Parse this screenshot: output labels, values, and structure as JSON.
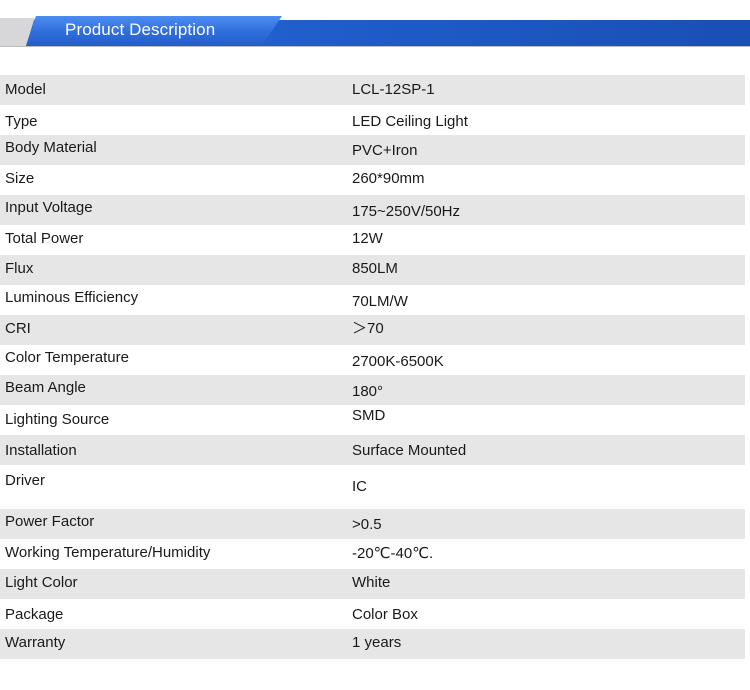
{
  "header": {
    "title": "Product Description"
  },
  "specs": [
    {
      "label": "Model",
      "value": "LCL-12SP-1"
    },
    {
      "label": "Type",
      "value": "LED Ceiling Light"
    },
    {
      "label": "Body Material",
      "value": "PVC+Iron"
    },
    {
      "label": "Size",
      "value": "260*90mm"
    },
    {
      "label": "Input Voltage",
      "value": "175~250V/50Hz"
    },
    {
      "label": "Total Power",
      "value": "12W"
    },
    {
      "label": "Flux",
      "value": "850LM"
    },
    {
      "label": "Luminous Efficiency",
      "value": "70LM/W"
    },
    {
      "label": "CRI",
      "value": "＞70"
    },
    {
      "label": "Color Temperature",
      "value": "2700K-6500K"
    },
    {
      "label": "Beam Angle",
      "value": "180°"
    },
    {
      "label": "Lighting Source",
      "value": "SMD"
    },
    {
      "label": "Installation",
      "value": "Surface Mounted"
    },
    {
      "label": "Driver",
      "value": "IC"
    },
    {
      "label": "Power Factor",
      "value": ">0.5"
    },
    {
      "label": "Working Temperature/Humidity",
      "value": "-20℃-40℃."
    },
    {
      "label": "Light Color",
      "value": "White"
    },
    {
      "label": "Package",
      "value": "Color Box"
    },
    {
      "label": "Warranty",
      "value": "1 years"
    }
  ]
}
